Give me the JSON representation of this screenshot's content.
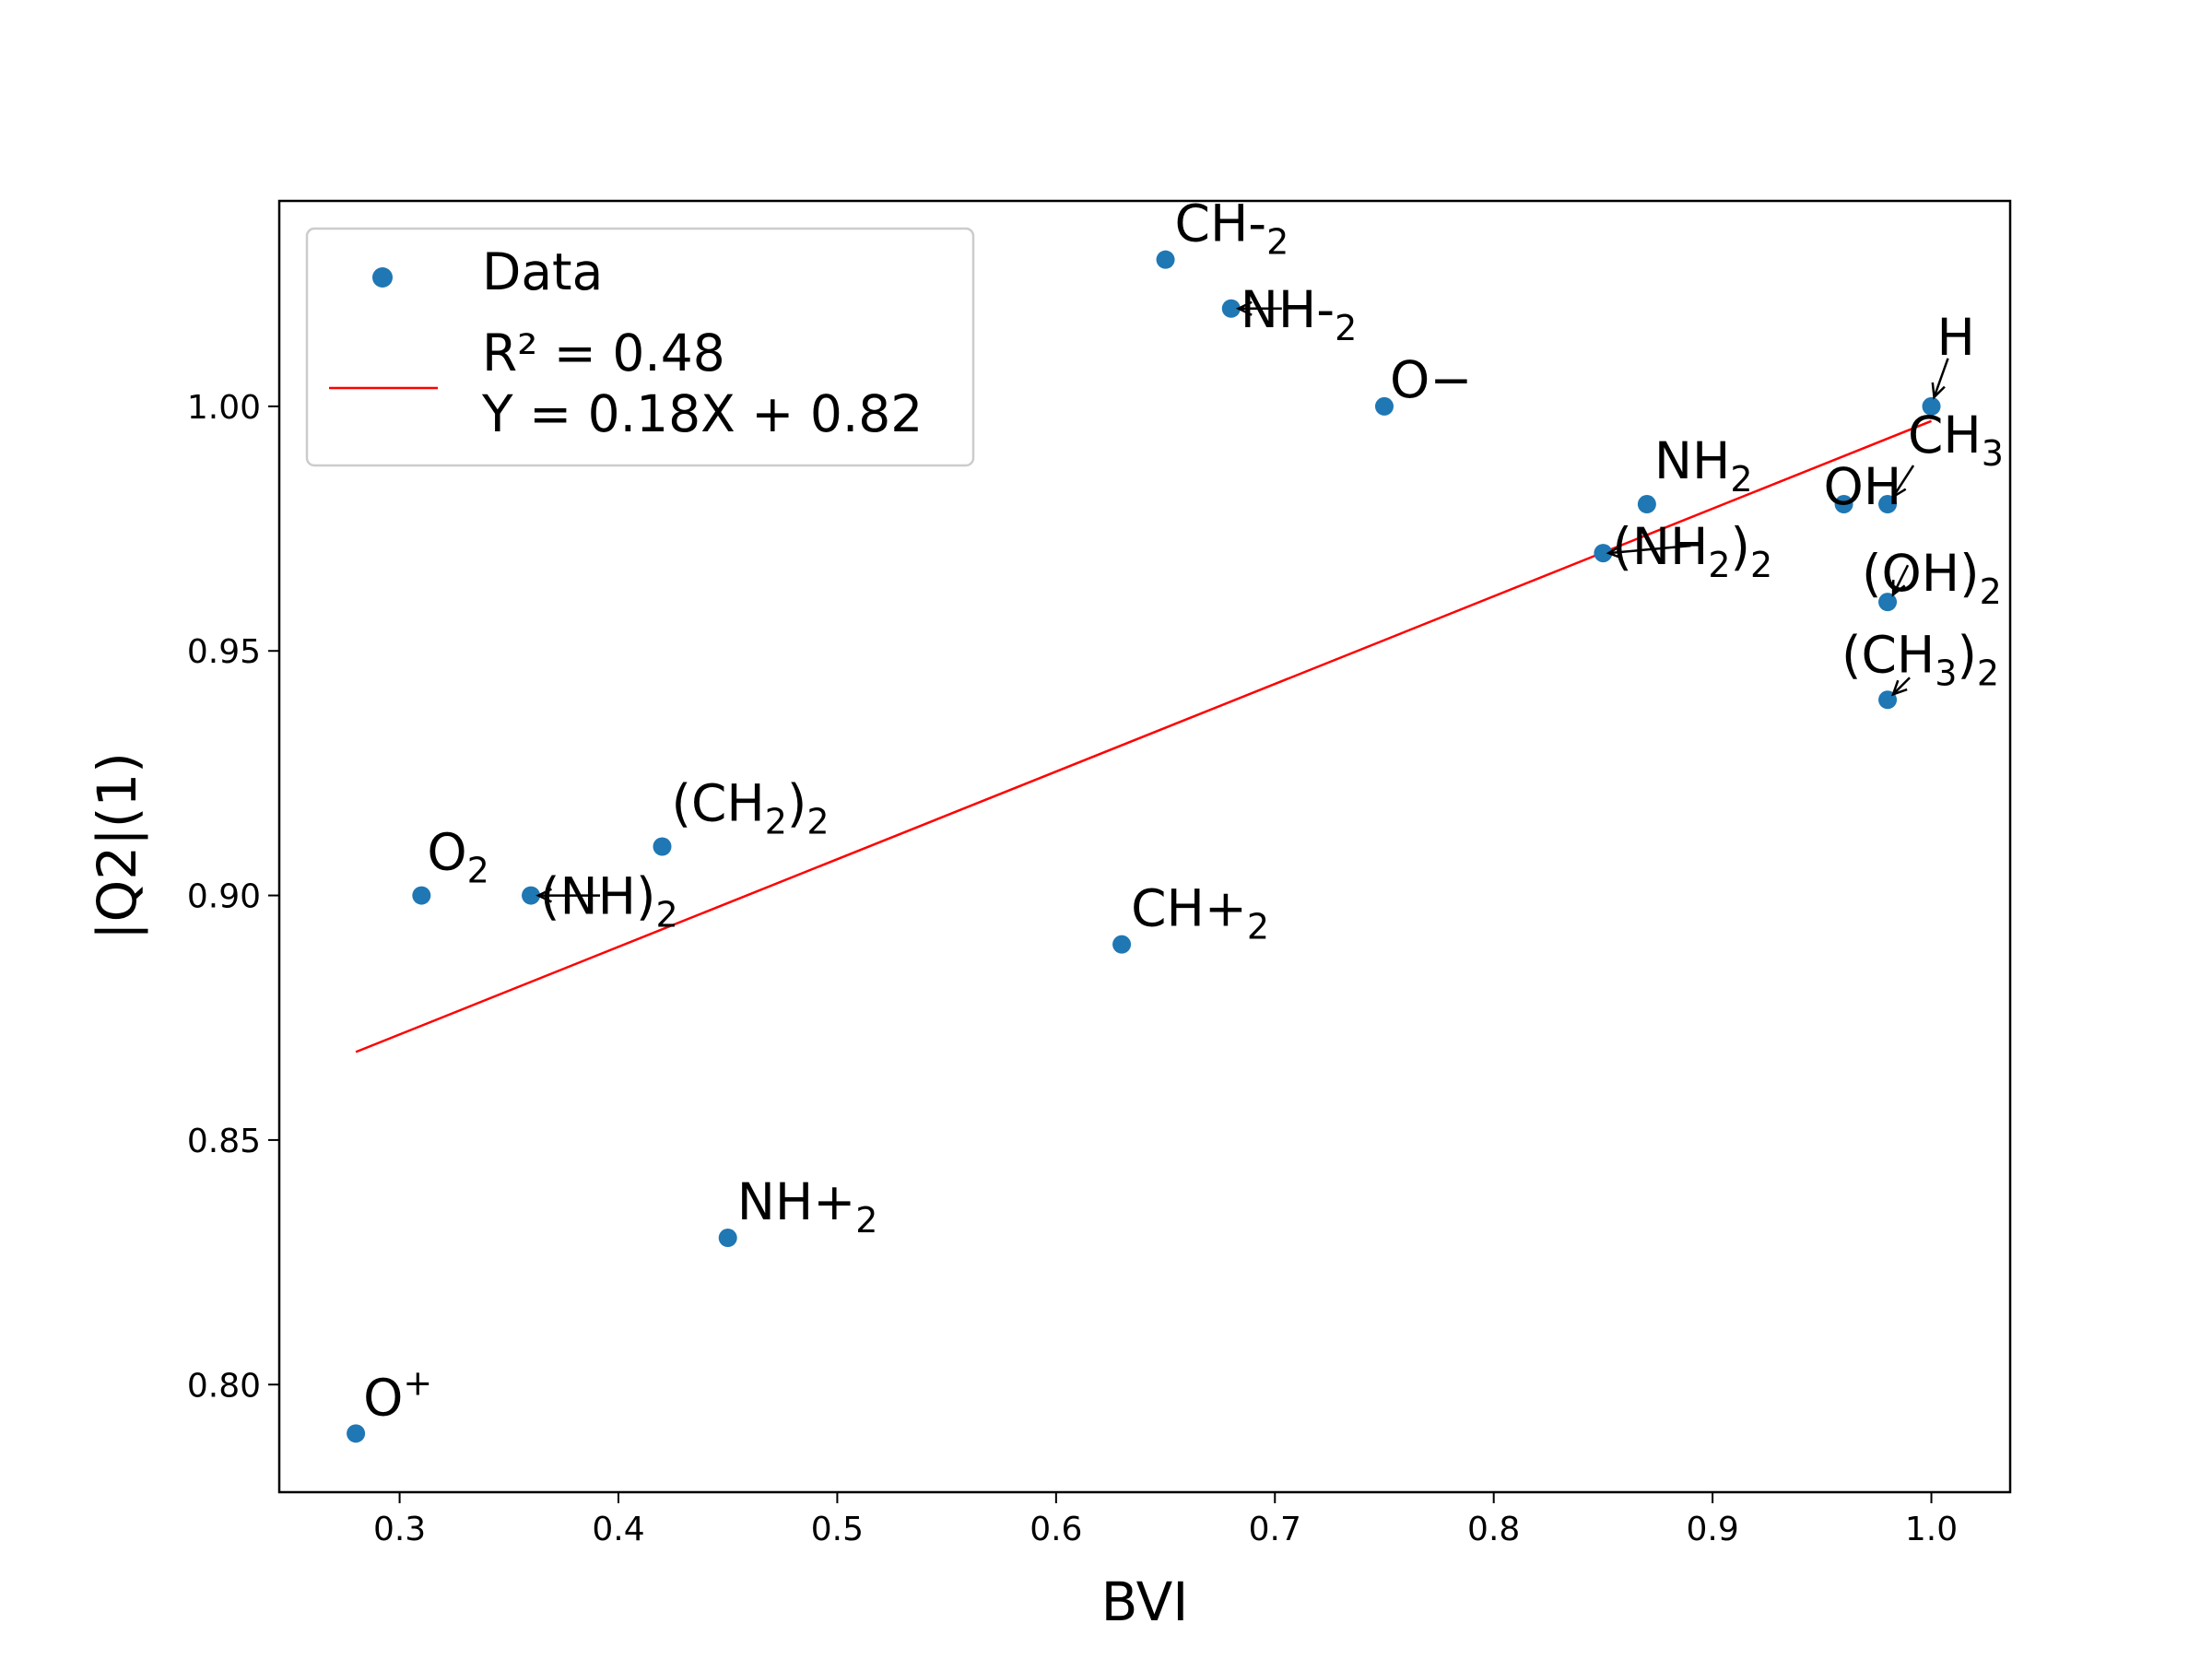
{
  "chart_data": {
    "type": "scatter",
    "xlabel": "BVI",
    "ylabel": "|Q2|(1)",
    "xlim": [
      0.245,
      1.036
    ],
    "ylim": [
      0.778,
      1.042
    ],
    "xticks": [
      "0.3",
      "0.4",
      "0.5",
      "0.6",
      "0.7",
      "0.8",
      "0.9",
      "1.0"
    ],
    "yticks": [
      "0.80",
      "0.85",
      "0.90",
      "0.95",
      "1.00"
    ],
    "grid": false,
    "legend_position": "top-left",
    "colors": {
      "points": "#1f77b4",
      "fit_line": "#ff0000"
    },
    "series": [
      {
        "name": "Data",
        "points": [
          {
            "x": 0.65,
            "y": 1.03,
            "label": "CH-",
            "sub": "2",
            "sup": "",
            "arrow": false
          },
          {
            "x": 0.68,
            "y": 1.02,
            "label": "NH-",
            "sub": "2",
            "sup": "",
            "arrow": true
          },
          {
            "x": 0.75,
            "y": 1.0,
            "label": "O−",
            "sub": "",
            "sup": "",
            "arrow": false
          },
          {
            "x": 1.0,
            "y": 1.0,
            "label": "H",
            "sub": "",
            "sup": "",
            "arrow": true
          },
          {
            "x": 0.98,
            "y": 0.98,
            "label": "CH",
            "sub": "3",
            "sup": "",
            "arrow": true
          },
          {
            "x": 0.96,
            "y": 0.98,
            "label": "OH",
            "sub": "",
            "sup": "",
            "arrow": false
          },
          {
            "x": 0.87,
            "y": 0.98,
            "label": "NH",
            "sub": "2",
            "sup": "",
            "arrow": false
          },
          {
            "x": 0.85,
            "y": 0.97,
            "label": "(NH",
            "sub": "2",
            "tail": ")",
            "tailsub": "2",
            "sup": "",
            "arrow": true
          },
          {
            "x": 0.98,
            "y": 0.96,
            "label": "(OH)",
            "sub": "2",
            "sup": "",
            "arrow": true
          },
          {
            "x": 0.98,
            "y": 0.94,
            "label": "(CH",
            "sub": "3",
            "tail": ")",
            "tailsub": "2",
            "sup": "",
            "arrow": true
          },
          {
            "x": 0.42,
            "y": 0.91,
            "label": "(CH",
            "sub": "2",
            "tail": ")",
            "tailsub": "2",
            "sup": "",
            "arrow": false
          },
          {
            "x": 0.31,
            "y": 0.9,
            "label": "O",
            "sub": "2",
            "sup": "",
            "arrow": false
          },
          {
            "x": 0.36,
            "y": 0.9,
            "label": "(NH)",
            "sub": "2",
            "sup": "",
            "arrow": true
          },
          {
            "x": 0.63,
            "y": 0.89,
            "label": "CH+",
            "sub": "2",
            "sup": "",
            "arrow": false
          },
          {
            "x": 0.45,
            "y": 0.83,
            "label": "NH+",
            "sub": "2",
            "sup": "",
            "arrow": false
          },
          {
            "x": 0.28,
            "y": 0.79,
            "label": "O",
            "sub": "",
            "sup": "+",
            "arrow": false
          }
        ]
      }
    ],
    "fit": {
      "r2_text": "R² = 0.48",
      "eq_text": "Y = 0.18X + 0.82",
      "x": [
        0.28,
        1.0
      ],
      "y": [
        0.868,
        0.997
      ]
    }
  }
}
